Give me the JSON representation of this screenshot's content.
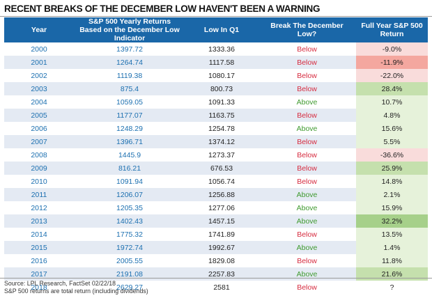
{
  "title": "RECENT BREAKS OF THE DECEMBER LOW HAVEN'T BEEN A WARNING",
  "headers": {
    "year": "Year",
    "indicator": "S&P 500 Yearly Returns Based on the December Low Indicator",
    "low_q1": "Low In Q1",
    "break": "Break The December Low?",
    "full_year": "Full Year S&P 500 Return"
  },
  "rows": [
    {
      "year": "2000",
      "indicator": "1397.72",
      "low_q1": "1333.36",
      "break": "Below",
      "return": "-9.0%",
      "shade": "neg-light"
    },
    {
      "year": "2001",
      "indicator": "1264.74",
      "low_q1": "1117.58",
      "break": "Below",
      "return": "-11.9%",
      "shade": "neg-strong"
    },
    {
      "year": "2002",
      "indicator": "1119.38",
      "low_q1": "1080.17",
      "break": "Below",
      "return": "-22.0%",
      "shade": "neg-light"
    },
    {
      "year": "2003",
      "indicator": "875.4",
      "low_q1": "800.73",
      "break": "Below",
      "return": "28.4%",
      "shade": "pos-mid"
    },
    {
      "year": "2004",
      "indicator": "1059.05",
      "low_q1": "1091.33",
      "break": "Above",
      "return": "10.7%",
      "shade": "pos-light"
    },
    {
      "year": "2005",
      "indicator": "1177.07",
      "low_q1": "1163.75",
      "break": "Below",
      "return": "4.8%",
      "shade": "pos-light"
    },
    {
      "year": "2006",
      "indicator": "1248.29",
      "low_q1": "1254.78",
      "break": "Above",
      "return": "15.6%",
      "shade": "pos-light"
    },
    {
      "year": "2007",
      "indicator": "1396.71",
      "low_q1": "1374.12",
      "break": "Below",
      "return": "5.5%",
      "shade": "pos-light"
    },
    {
      "year": "2008",
      "indicator": "1445.9",
      "low_q1": "1273.37",
      "break": "Below",
      "return": "-36.6%",
      "shade": "neg-light"
    },
    {
      "year": "2009",
      "indicator": "816.21",
      "low_q1": "676.53",
      "break": "Below",
      "return": "25.9%",
      "shade": "pos-mid"
    },
    {
      "year": "2010",
      "indicator": "1091.94",
      "low_q1": "1056.74",
      "break": "Below",
      "return": "14.8%",
      "shade": "pos-light"
    },
    {
      "year": "2011",
      "indicator": "1206.07",
      "low_q1": "1256.88",
      "break": "Above",
      "return": "2.1%",
      "shade": "pos-light"
    },
    {
      "year": "2012",
      "indicator": "1205.35",
      "low_q1": "1277.06",
      "break": "Above",
      "return": "15.9%",
      "shade": "pos-light"
    },
    {
      "year": "2013",
      "indicator": "1402.43",
      "low_q1": "1457.15",
      "break": "Above",
      "return": "32.2%",
      "shade": "pos-strong"
    },
    {
      "year": "2014",
      "indicator": "1775.32",
      "low_q1": "1741.89",
      "break": "Below",
      "return": "13.5%",
      "shade": "pos-light"
    },
    {
      "year": "2015",
      "indicator": "1972.74",
      "low_q1": "1992.67",
      "break": "Above",
      "return": "1.4%",
      "shade": "pos-light"
    },
    {
      "year": "2016",
      "indicator": "2005.55",
      "low_q1": "1829.08",
      "break": "Below",
      "return": "11.8%",
      "shade": "pos-light"
    },
    {
      "year": "2017",
      "indicator": "2191.08",
      "low_q1": "2257.83",
      "break": "Above",
      "return": "21.6%",
      "shade": "pos-mid"
    },
    {
      "year": "2018",
      "indicator": "2629.27",
      "low_q1": "2581",
      "break": "Below",
      "return": "?",
      "shade": "none"
    }
  ],
  "footer": {
    "source": "Source: LPL Research, FactSet  02/22/18",
    "note": "S&P 500 returns are total return (including dividends)"
  },
  "colors": {
    "header_bg": "#1a67a8",
    "row_alt_bg": "#e4eaf3",
    "year_text": "#1b6fb0",
    "below_text": "#d62b3f",
    "above_text": "#3f9a2f",
    "neg_light": "#f9dcdb",
    "neg_strong": "#f4a79f",
    "pos_light": "#e6f2da",
    "pos_mid": "#c5e0ad",
    "pos_strong": "#a6d08a"
  }
}
